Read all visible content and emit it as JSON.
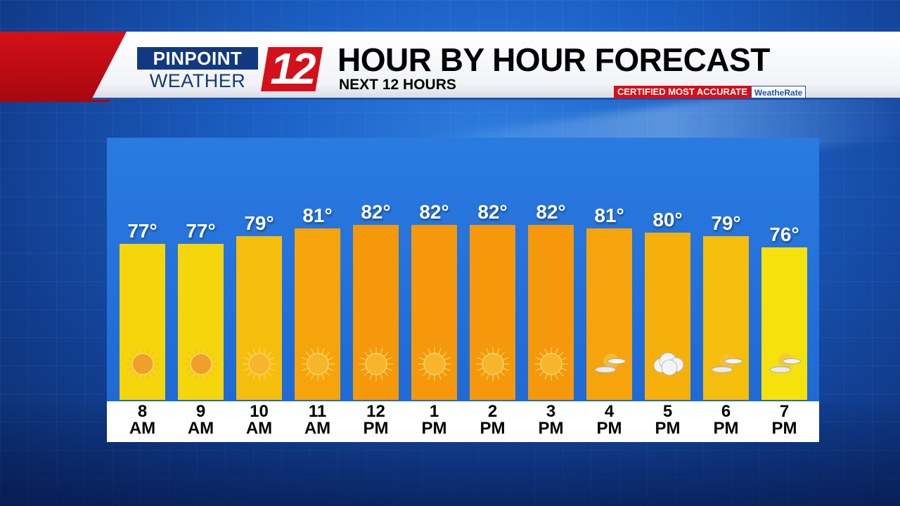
{
  "header": {
    "logo_top": "PINPOINT",
    "logo_bottom": "WEATHER",
    "logo_number": "12",
    "title": "HOUR BY HOUR FORECAST",
    "subtitle": "NEXT 12 HOURS",
    "cert_label": "CERTIFIED MOST ACCURATE",
    "cert_brand": "WeatheRate"
  },
  "colors": {
    "brand_red": "#d4101a",
    "brand_blue": "#12397f",
    "bar_cool": "#f5e10c",
    "bar_warm": "#f5980c"
  },
  "chart_data": {
    "type": "bar",
    "categories": [
      "8 AM",
      "9 AM",
      "10 AM",
      "11 AM",
      "12 PM",
      "1 PM",
      "2 PM",
      "3 PM",
      "4 PM",
      "5 PM",
      "6 PM",
      "7 PM"
    ],
    "series": [
      {
        "values": [
          77,
          77,
          79,
          81,
          82,
          82,
          82,
          82,
          81,
          80,
          79,
          76
        ]
      }
    ],
    "value_labels": [
      "77°",
      "77°",
      "79°",
      "81°",
      "82°",
      "82°",
      "82°",
      "82°",
      "81°",
      "80°",
      "79°",
      "76°"
    ],
    "tick_top": [
      "8",
      "9",
      "10",
      "11",
      "12",
      "1",
      "2",
      "3",
      "4",
      "5",
      "6",
      "7"
    ],
    "tick_bottom": [
      "AM",
      "AM",
      "AM",
      "AM",
      "PM",
      "PM",
      "PM",
      "PM",
      "PM",
      "PM",
      "PM",
      "PM"
    ],
    "icons": [
      "hazy-sun-icon",
      "hazy-sun-icon",
      "sun-icon",
      "sun-icon",
      "sun-icon",
      "sun-icon",
      "sun-icon",
      "sun-icon",
      "partly-cloudy-icon",
      "cloud-icon",
      "partly-cloudy-icon",
      "partly-cloudy-icon"
    ],
    "ylim": [
      40,
      82
    ],
    "grid": false
  }
}
